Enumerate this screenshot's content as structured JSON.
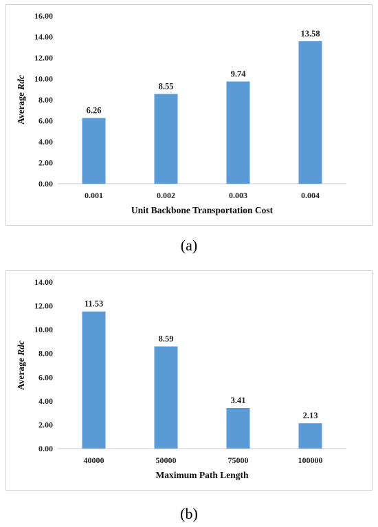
{
  "chart_data": [
    {
      "type": "bar",
      "panel_label": "(a)",
      "categories": [
        "0.001",
        "0.002",
        "0.003",
        "0.004"
      ],
      "values": [
        6.26,
        8.55,
        9.74,
        13.58
      ],
      "data_labels": [
        "6.26",
        "8.55",
        "9.74",
        "13.58"
      ],
      "xlabel": "Unit Backbone Transportation Cost",
      "ylabel_prefix": "Average",
      "ylabel_var": "Rdc",
      "ylim": [
        0,
        16
      ],
      "yticks": [
        "0.00",
        "2.00",
        "4.00",
        "6.00",
        "8.00",
        "10.00",
        "12.00",
        "14.00",
        "16.00"
      ],
      "bar_color": "#5b9bd5",
      "grid": false
    },
    {
      "type": "bar",
      "panel_label": "(b)",
      "categories": [
        "40000",
        "50000",
        "75000",
        "100000"
      ],
      "values": [
        11.53,
        8.59,
        3.41,
        2.13
      ],
      "data_labels": [
        "11.53",
        "8.59",
        "3.41",
        "2.13"
      ],
      "xlabel": "Maximum Path Length",
      "ylabel_prefix": "Average",
      "ylabel_var": "Rdc",
      "ylim": [
        0,
        14
      ],
      "yticks": [
        "0.00",
        "2.00",
        "4.00",
        "6.00",
        "8.00",
        "10.00",
        "12.00",
        "14.00"
      ],
      "bar_color": "#5b9bd5",
      "grid": false
    }
  ]
}
